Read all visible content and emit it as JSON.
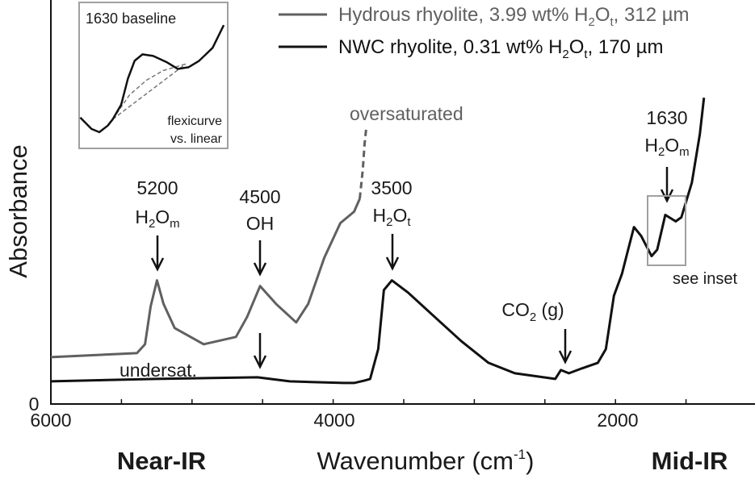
{
  "chart_data": {
    "type": "line",
    "xlabel": "Wavenumber (cm",
    "xlabel_sup": "-1",
    "xlabel_close": ")",
    "ylabel": "Absorbance",
    "x_reversed": true,
    "xlim": [
      6000,
      1000
    ],
    "ylim": [
      0,
      5
    ],
    "x_ticks": [
      "6000",
      "4000",
      "2000"
    ],
    "x_minor_tick_step": 500,
    "y_ticks": [
      "0"
    ],
    "grid": false,
    "legend_placement": "top-right",
    "region_labels": {
      "left": "Near-IR",
      "right": "Mid-IR"
    },
    "colors": {
      "hydrous": "#606060",
      "nwc": "#111111",
      "inset_box": "#a0a0a0"
    },
    "series": [
      {
        "name_parts": [
          "Hydrous rhyolite, 3.99 wt% H",
          "2",
          "O",
          "t",
          ", 312 µm"
        ],
        "color": "#606060",
        "x": [
          6000,
          5390,
          5333,
          5293,
          5248,
          5202,
          5123,
          4917,
          4689,
          4609,
          4518,
          4405,
          4262,
          4177,
          4063,
          3949,
          3852,
          3812
        ],
        "y": [
          0.58,
          0.63,
          0.74,
          1.21,
          1.53,
          1.24,
          0.94,
          0.74,
          0.83,
          1.08,
          1.46,
          1.24,
          1.01,
          1.24,
          1.81,
          2.24,
          2.38,
          2.54
        ],
        "dashed_extension": {
          "x": [
            3812,
            3790,
            3778,
            3766
          ],
          "y": [
            2.54,
            2.9,
            3.21,
            3.41
          ]
        }
      },
      {
        "name_parts": [
          "NWC rhyolite, 0.31 wt% H",
          "2",
          "O",
          "t",
          ", 170 µm"
        ],
        "color": "#111111",
        "x": [
          6000,
          5259,
          4536,
          4308,
          3926,
          3852,
          3778,
          3738,
          3681,
          3641,
          3584,
          3470,
          3282,
          3094,
          2900,
          2712,
          2427,
          2387,
          2330,
          2239,
          2125,
          2068,
          2011,
          1954,
          1915,
          1869,
          1818,
          1744,
          1704,
          1647,
          1573,
          1533,
          1459,
          1402,
          1373
        ],
        "y": [
          0.28,
          0.31,
          0.33,
          0.28,
          0.26,
          0.26,
          0.29,
          0.31,
          0.68,
          1.41,
          1.53,
          1.38,
          1.08,
          0.78,
          0.51,
          0.38,
          0.31,
          0.42,
          0.38,
          0.44,
          0.51,
          0.68,
          1.34,
          1.61,
          1.88,
          2.19,
          2.08,
          1.83,
          1.91,
          2.34,
          2.26,
          2.31,
          2.74,
          3.34,
          3.79
        ]
      }
    ],
    "annotations": [
      {
        "id": "a5200",
        "line1": "5200",
        "line2_parts": [
          "H",
          "2",
          "O",
          "m"
        ]
      },
      {
        "id": "a4500",
        "line1": "4500",
        "line2": "OH"
      },
      {
        "id": "a3500",
        "line1": "3500",
        "line2_parts": [
          "H",
          "2",
          "O",
          "t"
        ]
      },
      {
        "id": "aco2",
        "parts": [
          "CO",
          "2",
          " (g)"
        ]
      },
      {
        "id": "a1630",
        "line1": "1630",
        "line2_parts": [
          "H",
          "2",
          "O",
          "m"
        ]
      },
      {
        "id": "oversat",
        "text": "oversaturated"
      },
      {
        "id": "undersat",
        "text": "undersat."
      },
      {
        "id": "seeinset",
        "text": "see inset"
      }
    ],
    "inset": {
      "title": "1630 baseline",
      "note_line1": "flexicurve",
      "note_line2": "vs. linear",
      "xlim": [
        1790,
        1525
      ],
      "ylim": [
        1.7,
        2.6
      ],
      "spectrum": {
        "x": [
          1788,
          1768,
          1754,
          1739,
          1730,
          1715,
          1703,
          1691,
          1677,
          1658,
          1633,
          1614,
          1595,
          1576,
          1552,
          1532
        ],
        "y": [
          1.89,
          1.82,
          1.8,
          1.84,
          1.88,
          1.97,
          2.13,
          2.24,
          2.28,
          2.27,
          2.23,
          2.19,
          2.2,
          2.24,
          2.32,
          2.46
        ]
      },
      "linear_baseline": {
        "x": [
          1730,
          1600
        ],
        "y": [
          1.88,
          2.22
        ]
      },
      "flexicurve_baseline": {
        "x": [
          1730,
          1700,
          1670,
          1640,
          1600
        ],
        "y": [
          1.88,
          2.03,
          2.12,
          2.18,
          2.22
        ]
      }
    }
  }
}
